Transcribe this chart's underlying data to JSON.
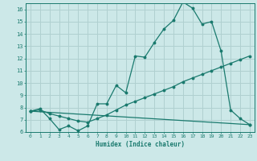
{
  "title": "",
  "xlabel": "Humidex (Indice chaleur)",
  "bg_color": "#cce8e8",
  "grid_color": "#b0d0d0",
  "line_color": "#1a7a6e",
  "xlim": [
    -0.5,
    23.5
  ],
  "ylim": [
    6,
    16.5
  ],
  "yticks": [
    6,
    7,
    8,
    9,
    10,
    11,
    12,
    13,
    14,
    15,
    16
  ],
  "xticks": [
    0,
    1,
    2,
    3,
    4,
    5,
    6,
    7,
    8,
    9,
    10,
    11,
    12,
    13,
    14,
    15,
    16,
    17,
    18,
    19,
    20,
    21,
    22,
    23
  ],
  "line1_x": [
    0,
    1,
    2,
    3,
    4,
    5,
    6,
    7,
    8,
    9,
    10,
    11,
    12,
    13,
    14,
    15,
    16,
    17,
    18,
    19,
    20,
    21,
    22,
    23
  ],
  "line1_y": [
    7.7,
    7.9,
    7.1,
    6.2,
    6.5,
    6.1,
    6.5,
    8.3,
    8.3,
    9.8,
    9.2,
    12.2,
    12.1,
    13.3,
    14.4,
    15.1,
    16.6,
    16.1,
    14.8,
    15.0,
    12.6,
    7.8,
    7.1,
    6.6
  ],
  "line2_x": [
    0,
    1,
    2,
    3,
    4,
    5,
    6,
    7,
    8,
    9,
    10,
    11,
    12,
    13,
    14,
    15,
    16,
    17,
    18,
    19,
    20,
    21,
    22,
    23
  ],
  "line2_y": [
    7.7,
    7.8,
    7.5,
    7.3,
    7.1,
    6.9,
    6.8,
    7.1,
    7.4,
    7.8,
    8.2,
    8.5,
    8.8,
    9.1,
    9.4,
    9.7,
    10.1,
    10.4,
    10.7,
    11.0,
    11.3,
    11.6,
    11.9,
    12.2
  ],
  "line3_x": [
    0,
    23
  ],
  "line3_y": [
    7.7,
    6.6
  ]
}
